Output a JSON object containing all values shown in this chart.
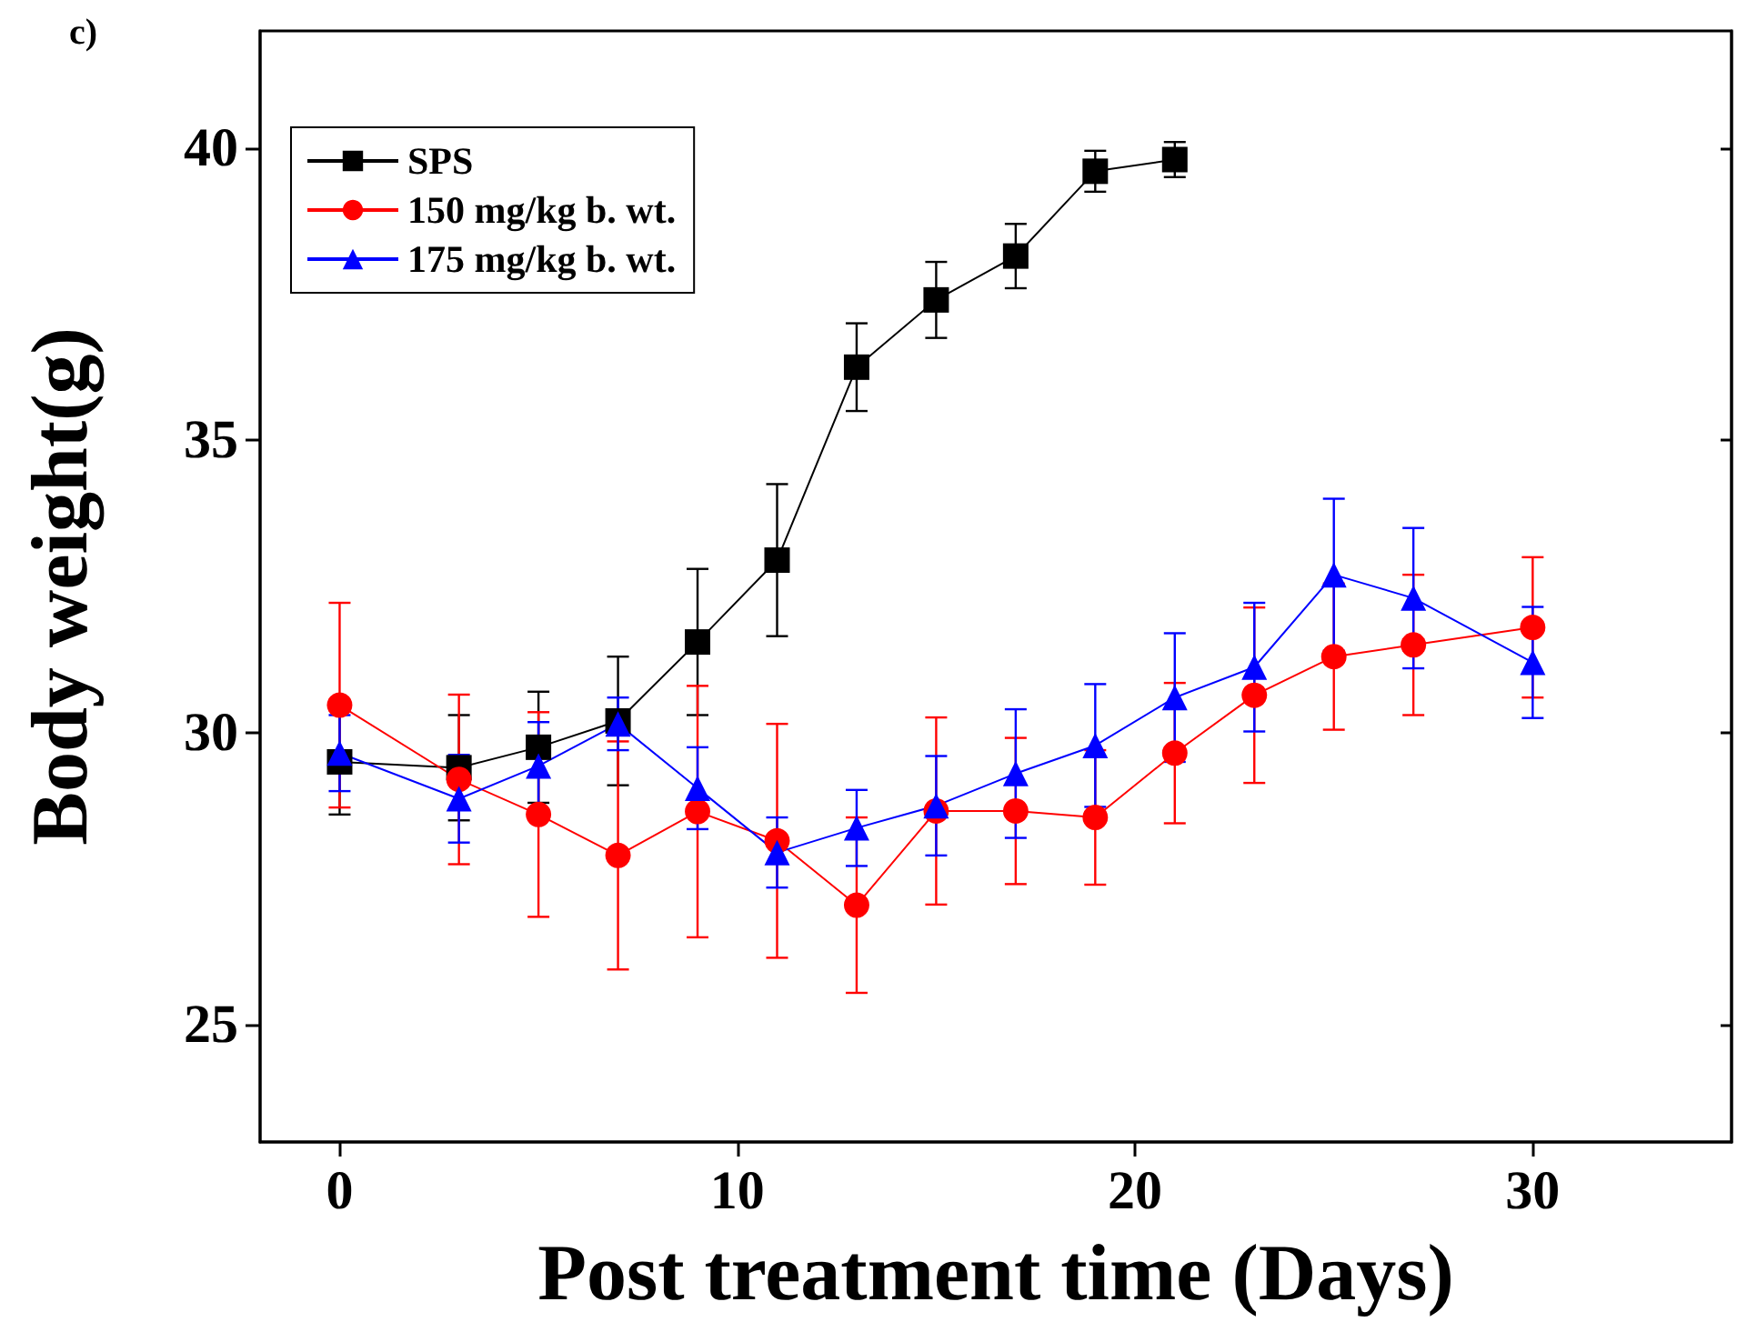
{
  "chart_data": {
    "type": "line",
    "xlabel": "Post treatment time (Days)",
    "ylabel": "Body weight(g)",
    "annotations": [
      "c)"
    ],
    "xlim": [
      -2,
      35
    ],
    "xticks": [
      0,
      10,
      20,
      30
    ],
    "ylim": [
      23,
      42
    ],
    "yticks": [
      25,
      30,
      35,
      40
    ],
    "grid": false,
    "legend": "top left",
    "line_style": "solid",
    "series": [
      {
        "name": "SPS",
        "color": "#000000",
        "marker": "square",
        "x": [
          0,
          3,
          5,
          7,
          9,
          11,
          13,
          15,
          17,
          19,
          21
        ],
        "values": [
          29.5,
          29.4,
          29.75,
          30.2,
          31.55,
          32.95,
          36.25,
          37.4,
          38.15,
          39.6,
          39.8
        ],
        "errors": [
          0.9,
          0.9,
          0.95,
          1.1,
          1.25,
          1.3,
          0.75,
          0.65,
          0.55,
          0.35,
          0.3
        ]
      },
      {
        "name": "150 mg/kg b. wt.",
        "color": "#ff0000",
        "marker": "circle",
        "x": [
          0,
          3,
          5,
          7,
          9,
          11,
          13,
          15,
          17,
          19,
          21,
          23,
          25,
          27,
          30
        ],
        "values": [
          30.47,
          29.2,
          28.6,
          27.9,
          28.65,
          28.15,
          27.05,
          28.66,
          28.66,
          28.55,
          29.65,
          30.64,
          31.3,
          31.5,
          31.8
        ],
        "errors": [
          1.75,
          1.45,
          1.75,
          1.95,
          2.15,
          2.0,
          1.5,
          1.6,
          1.25,
          1.15,
          1.2,
          1.5,
          1.25,
          1.2,
          1.2
        ]
      },
      {
        "name": "175 mg/kg b. wt.",
        "color": "#0000ff",
        "marker": "triangle",
        "x": [
          0,
          3,
          5,
          7,
          9,
          11,
          13,
          15,
          17,
          19,
          21,
          23,
          25,
          27,
          30
        ],
        "values": [
          29.65,
          28.87,
          29.43,
          30.15,
          29.05,
          27.95,
          28.37,
          28.75,
          29.3,
          29.78,
          30.6,
          31.12,
          32.7,
          32.3,
          31.2
        ],
        "errors": [
          0.65,
          0.75,
          0.75,
          0.45,
          0.7,
          0.6,
          0.65,
          0.85,
          1.1,
          1.05,
          1.1,
          1.1,
          1.3,
          1.2,
          0.95
        ]
      }
    ]
  }
}
